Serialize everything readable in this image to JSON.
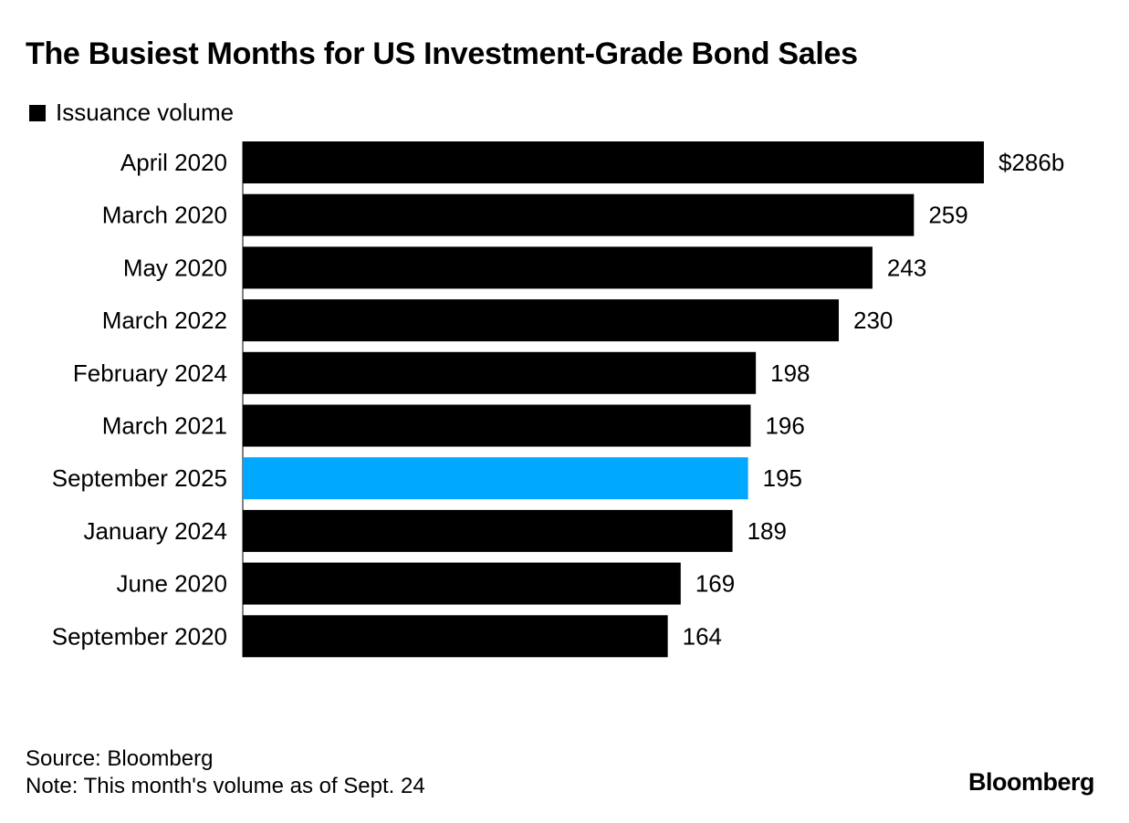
{
  "chart_data": {
    "type": "bar",
    "orientation": "horizontal",
    "title": "The Busiest Months for US Investment-Grade Bond Sales",
    "legend": [
      {
        "label": "Issuance volume",
        "color": "#000000"
      }
    ],
    "categories": [
      "April 2020",
      "March 2020",
      "May 2020",
      "March 2022",
      "February 2024",
      "March 2021",
      "September 2025",
      "January 2024",
      "June 2020",
      "September 2020"
    ],
    "values": [
      286,
      259,
      243,
      230,
      198,
      196,
      195,
      189,
      169,
      164
    ],
    "value_labels": [
      "$286b",
      "259",
      "243",
      "230",
      "198",
      "196",
      "195",
      "189",
      "169",
      "164"
    ],
    "highlight_index": 6,
    "highlight_color": "#00a8ff",
    "bar_color": "#000000",
    "unit": "$b",
    "xlim": [
      0,
      286
    ],
    "xlabel": "",
    "ylabel": "",
    "grid": false
  },
  "footer": {
    "source": "Source: Bloomberg",
    "note": "Note: This month's volume as of Sept. 24",
    "brand": "Bloomberg"
  }
}
